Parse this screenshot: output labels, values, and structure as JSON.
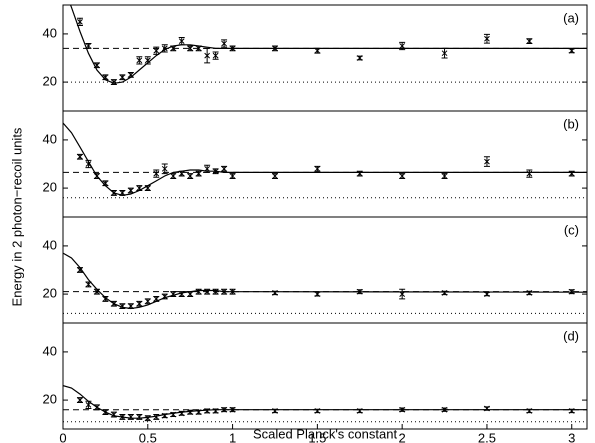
{
  "figure": {
    "xlabel": "Scaled Planck's constant",
    "ylabel": "Energy in 2 photon−recoil units"
  },
  "chart_data": [
    {
      "type": "scatter",
      "label": "(a)",
      "color": "#000000",
      "xlim": [
        0,
        3.09
      ],
      "ylim": [
        8,
        52
      ],
      "yticks": [
        20,
        40
      ],
      "x": [
        0.1,
        0.15,
        0.2,
        0.25,
        0.3,
        0.35,
        0.4,
        0.45,
        0.5,
        0.55,
        0.6,
        0.65,
        0.7,
        0.75,
        0.8,
        0.85,
        0.9,
        0.95,
        1.0,
        1.25,
        1.5,
        1.75,
        2,
        2.25,
        2.5,
        2.75,
        3
      ],
      "values": [
        45,
        35,
        27,
        22,
        20,
        22,
        23,
        29,
        29,
        33,
        34,
        34,
        37,
        34,
        34,
        31,
        31,
        36,
        34,
        34,
        33,
        30,
        35,
        32,
        38,
        37,
        33
      ],
      "errors": [
        1.5,
        1,
        1,
        1,
        1,
        1,
        1,
        1.5,
        1.5,
        1.5,
        1.5,
        1,
        1.5,
        1,
        1,
        3,
        1.5,
        1.5,
        1,
        1,
        1,
        0.8,
        1.5,
        2,
        1.8,
        1,
        0.8
      ],
      "curve_x": [
        0,
        0.05,
        0.1,
        0.15,
        0.2,
        0.25,
        0.3,
        0.35,
        0.4,
        0.45,
        0.5,
        0.55,
        0.6,
        0.65,
        0.7,
        0.75,
        0.8,
        0.85,
        0.9,
        0.95,
        1.0,
        1.1,
        3.09
      ],
      "curve_values": [
        60,
        51,
        41,
        32,
        25,
        21,
        19.5,
        20,
        22,
        25,
        28,
        31,
        33.5,
        35,
        35.5,
        35.5,
        35,
        34.5,
        34,
        34,
        34,
        34,
        34
      ],
      "hlines": [
        {
          "value": 34,
          "style": "dashed"
        },
        {
          "value": 20,
          "style": "dotted"
        }
      ]
    },
    {
      "type": "scatter",
      "label": "(b)",
      "color": "#000000",
      "xlim": [
        0,
        3.09
      ],
      "ylim": [
        8,
        52
      ],
      "yticks": [
        20,
        40
      ],
      "x": [
        0.1,
        0.15,
        0.2,
        0.25,
        0.3,
        0.35,
        0.4,
        0.45,
        0.5,
        0.55,
        0.6,
        0.65,
        0.7,
        0.75,
        0.8,
        0.85,
        0.9,
        0.95,
        1.0,
        1.25,
        1.5,
        1.75,
        2,
        2.25,
        2.5,
        2.75,
        3
      ],
      "values": [
        33,
        30,
        25,
        22,
        18,
        18,
        19,
        20,
        20,
        26,
        28,
        25,
        26,
        25,
        26,
        28,
        27,
        28,
        25,
        25,
        28,
        26,
        25,
        25,
        31,
        26,
        26
      ],
      "errors": [
        1,
        1.5,
        1,
        1,
        1,
        1,
        1,
        1,
        1,
        1.5,
        2,
        1,
        1,
        1,
        1,
        1.5,
        1,
        1,
        1,
        1,
        1,
        1,
        1,
        1,
        2,
        1.5,
        1
      ],
      "curve_x": [
        0,
        0.05,
        0.1,
        0.15,
        0.2,
        0.25,
        0.3,
        0.35,
        0.4,
        0.45,
        0.5,
        0.55,
        0.6,
        0.65,
        0.7,
        0.75,
        0.8,
        0.85,
        0.9,
        0.95,
        1.0,
        1.1,
        3.09
      ],
      "curve_values": [
        47,
        43,
        37,
        31,
        25,
        21,
        18,
        17,
        17.5,
        19,
        21,
        23,
        25,
        26.5,
        27,
        27.5,
        27.5,
        27,
        27,
        26.5,
        26.5,
        26.5,
        26.5
      ],
      "hlines": [
        {
          "value": 26.5,
          "style": "dashed"
        },
        {
          "value": 16,
          "style": "dotted"
        }
      ]
    },
    {
      "type": "scatter",
      "label": "(c)",
      "color": "#000000",
      "xlim": [
        0,
        3.09
      ],
      "ylim": [
        8,
        52
      ],
      "yticks": [
        20,
        40
      ],
      "x": [
        0.1,
        0.15,
        0.2,
        0.25,
        0.3,
        0.35,
        0.4,
        0.45,
        0.5,
        0.55,
        0.6,
        0.65,
        0.7,
        0.75,
        0.8,
        0.85,
        0.9,
        0.95,
        1.0,
        1.25,
        1.5,
        1.75,
        2,
        2.25,
        2.5,
        2.75,
        3
      ],
      "values": [
        30,
        24,
        21,
        18,
        16,
        15,
        15,
        16,
        17,
        18,
        19,
        20,
        20,
        20,
        21,
        21,
        21,
        21,
        21,
        20.5,
        20,
        21,
        20,
        20.5,
        20,
        20.5,
        21
      ],
      "errors": [
        1,
        1,
        1,
        1,
        1,
        1,
        1,
        1,
        1,
        1,
        1,
        1,
        1,
        1,
        1,
        1,
        1,
        1,
        1,
        0.7,
        0.8,
        0.8,
        2,
        0.7,
        0.7,
        0.7,
        0.8
      ],
      "curve_x": [
        0,
        0.05,
        0.1,
        0.15,
        0.2,
        0.25,
        0.3,
        0.35,
        0.4,
        0.45,
        0.5,
        0.55,
        0.6,
        0.65,
        0.7,
        0.75,
        0.8,
        0.85,
        0.9,
        0.95,
        1.0,
        1.1,
        3.09
      ],
      "curve_values": [
        37,
        35,
        31,
        26,
        22,
        18.5,
        16,
        14.5,
        14,
        14.5,
        15.5,
        17,
        18.5,
        19.5,
        20.5,
        21,
        21.5,
        21.5,
        21.5,
        21,
        21,
        21,
        20.8
      ],
      "hlines": [
        {
          "value": 21,
          "style": "dashed"
        },
        {
          "value": 12,
          "style": "dotted"
        }
      ]
    },
    {
      "type": "scatter",
      "label": "(d)",
      "color": "#000000",
      "xlim": [
        0,
        3.09
      ],
      "ylim": [
        8,
        52
      ],
      "yticks": [
        20,
        40
      ],
      "xticks": [
        0,
        0.5,
        1,
        1.5,
        2,
        2.5,
        3
      ],
      "x": [
        0.1,
        0.15,
        0.2,
        0.25,
        0.3,
        0.35,
        0.4,
        0.45,
        0.5,
        0.55,
        0.6,
        0.65,
        0.7,
        0.75,
        0.8,
        0.85,
        0.9,
        0.95,
        1.0,
        1.25,
        1.5,
        1.75,
        2,
        2.25,
        2.5,
        2.75,
        3
      ],
      "values": [
        20,
        18,
        17,
        15,
        14,
        13,
        13,
        13,
        12.5,
        13,
        13.5,
        14,
        14.5,
        15,
        15,
        15.5,
        15.5,
        16,
        16,
        15.5,
        15.5,
        15.5,
        16,
        16,
        16.5,
        15.5,
        15.5
      ],
      "errors": [
        1,
        1.5,
        1,
        1,
        1,
        1,
        1,
        1,
        1,
        1,
        0.8,
        0.8,
        0.8,
        0.8,
        0.8,
        0.8,
        0.8,
        0.8,
        0.8,
        0.7,
        0.7,
        0.7,
        0.7,
        0.7,
        0.7,
        0.7,
        0.7
      ],
      "curve_x": [
        0,
        0.05,
        0.1,
        0.15,
        0.2,
        0.25,
        0.3,
        0.35,
        0.4,
        0.45,
        0.5,
        0.55,
        0.6,
        0.65,
        0.7,
        0.75,
        0.8,
        0.85,
        0.9,
        0.95,
        1.0,
        1.1,
        3.09
      ],
      "curve_values": [
        26,
        25,
        22.5,
        19.5,
        17,
        15,
        13.5,
        13,
        12.5,
        12.5,
        12.8,
        13.3,
        14,
        14.5,
        15,
        15.3,
        15.6,
        15.8,
        16,
        16,
        16,
        16,
        16
      ],
      "hlines": [
        {
          "value": 16,
          "style": "dashed"
        },
        {
          "value": 11,
          "style": "dotted"
        }
      ]
    }
  ]
}
